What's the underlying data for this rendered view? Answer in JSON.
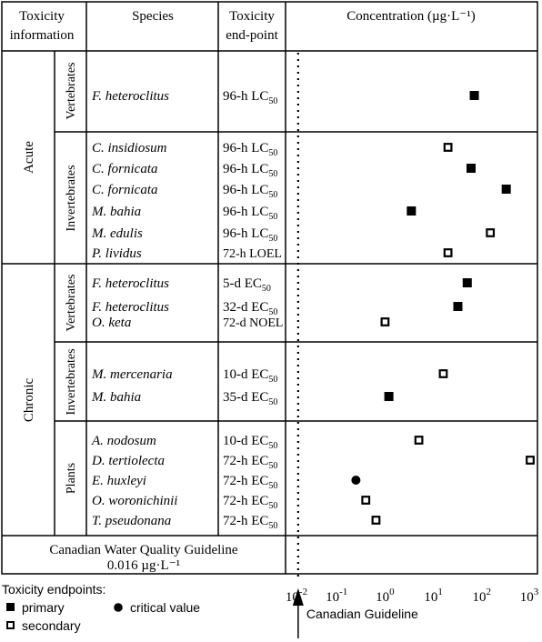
{
  "header": {
    "col1_line1": "Toxicity",
    "col1_line2": "information",
    "col2": "Species",
    "col3_line1": "Toxicity",
    "col3_line2": "end-point",
    "col4": "Concentration (µg·L⁻¹)"
  },
  "groups": {
    "acute": "Acute",
    "chronic": "Chronic",
    "vertebrates": "Vertebrates",
    "invertebrates": "Invertebrates",
    "plants": "Plants"
  },
  "guideline": {
    "line1": "Canadian Water Quality Guideline",
    "line2": "0.016 µg·L⁻¹",
    "value": 0.016,
    "arrow_label": "Canadian Guideline"
  },
  "legend": {
    "title": "Toxicity endpoints:",
    "primary": "primary",
    "critical": "critical value",
    "secondary": "secondary"
  },
  "chart_data": {
    "type": "scatter",
    "xlabel": "Concentration (µg·L⁻¹)",
    "xscale": "log",
    "xlim": [
      0.01,
      1000
    ],
    "x_ticks": [
      0.01,
      0.1,
      1,
      10,
      100,
      1000
    ],
    "x_tick_labels": [
      {
        "base": "10",
        "exp": "-2"
      },
      {
        "base": "10",
        "exp": "-1"
      },
      {
        "base": "10",
        "exp": "0"
      },
      {
        "base": "10",
        "exp": "1"
      },
      {
        "base": "10",
        "exp": "2"
      },
      {
        "base": "10",
        "exp": "3"
      }
    ],
    "grid": false,
    "points": [
      {
        "type": "Acute",
        "group": "Vertebrates",
        "species": "F. heteroclitus",
        "endpoint": "96-h LC",
        "sub": "50",
        "value": 70,
        "kind": "primary"
      },
      {
        "type": "Acute",
        "group": "Invertebrates",
        "species": "C. insidiosum",
        "endpoint": "96-h LC",
        "sub": "50",
        "value": 20,
        "kind": "secondary"
      },
      {
        "type": "Acute",
        "group": "Invertebrates",
        "species": "C. fornicata",
        "endpoint": "96-h LC",
        "sub": "50",
        "value": 60,
        "kind": "primary"
      },
      {
        "type": "Acute",
        "group": "Invertebrates",
        "species": "C. fornicata",
        "endpoint": "96-h LC",
        "sub": "50",
        "value": 320,
        "kind": "primary"
      },
      {
        "type": "Acute",
        "group": "Invertebrates",
        "species": "M. bahia",
        "endpoint": "96-h LC",
        "sub": "50",
        "value": 3.5,
        "kind": "primary"
      },
      {
        "type": "Acute",
        "group": "Invertebrates",
        "species": "M. edulis",
        "endpoint": "96-h LC",
        "sub": "50",
        "value": 150,
        "kind": "secondary"
      },
      {
        "type": "Acute",
        "group": "Invertebrates",
        "species": "P. lividus",
        "endpoint": "72-h LOEL",
        "sub": "",
        "value": 20,
        "kind": "secondary"
      },
      {
        "type": "Chronic",
        "group": "Vertebrates",
        "species": "F. heteroclitus",
        "endpoint": "5-d EC",
        "sub": "50",
        "value": 50,
        "kind": "primary"
      },
      {
        "type": "Chronic",
        "group": "Vertebrates",
        "species": "F. heteroclitus",
        "endpoint": "32-d EC",
        "sub": "50",
        "value": 32,
        "kind": "primary"
      },
      {
        "type": "Chronic",
        "group": "Vertebrates",
        "species": "O. keta",
        "endpoint": "72-d NOEL",
        "sub": "",
        "value": 1,
        "kind": "secondary"
      },
      {
        "type": "Chronic",
        "group": "Invertebrates",
        "species": "M. mercenaria",
        "endpoint": "10-d EC",
        "sub": "50",
        "value": 16,
        "kind": "secondary"
      },
      {
        "type": "Chronic",
        "group": "Invertebrates",
        "species": "M. bahia",
        "endpoint": "35-d EC",
        "sub": "50",
        "value": 1.2,
        "kind": "primary"
      },
      {
        "type": "Chronic",
        "group": "Plants",
        "species": "A. nodosum",
        "endpoint": "10-d EC",
        "sub": "50",
        "value": 5,
        "kind": "secondary"
      },
      {
        "type": "Chronic",
        "group": "Plants",
        "species": "D. tertiolecta",
        "endpoint": "72-h EC",
        "sub": "50",
        "value": 1000,
        "kind": "secondary"
      },
      {
        "type": "Chronic",
        "group": "Plants",
        "species": "E. huxleyi",
        "endpoint": "72-h EC",
        "sub": "50",
        "value": 0.25,
        "kind": "critical"
      },
      {
        "type": "Chronic",
        "group": "Plants",
        "species": "O. woronichinii",
        "endpoint": "72-h EC",
        "sub": "50",
        "value": 0.4,
        "kind": "secondary"
      },
      {
        "type": "Chronic",
        "group": "Plants",
        "species": "T. pseudonana",
        "endpoint": "72-h EC",
        "sub": "50",
        "value": 0.65,
        "kind": "secondary"
      }
    ]
  }
}
